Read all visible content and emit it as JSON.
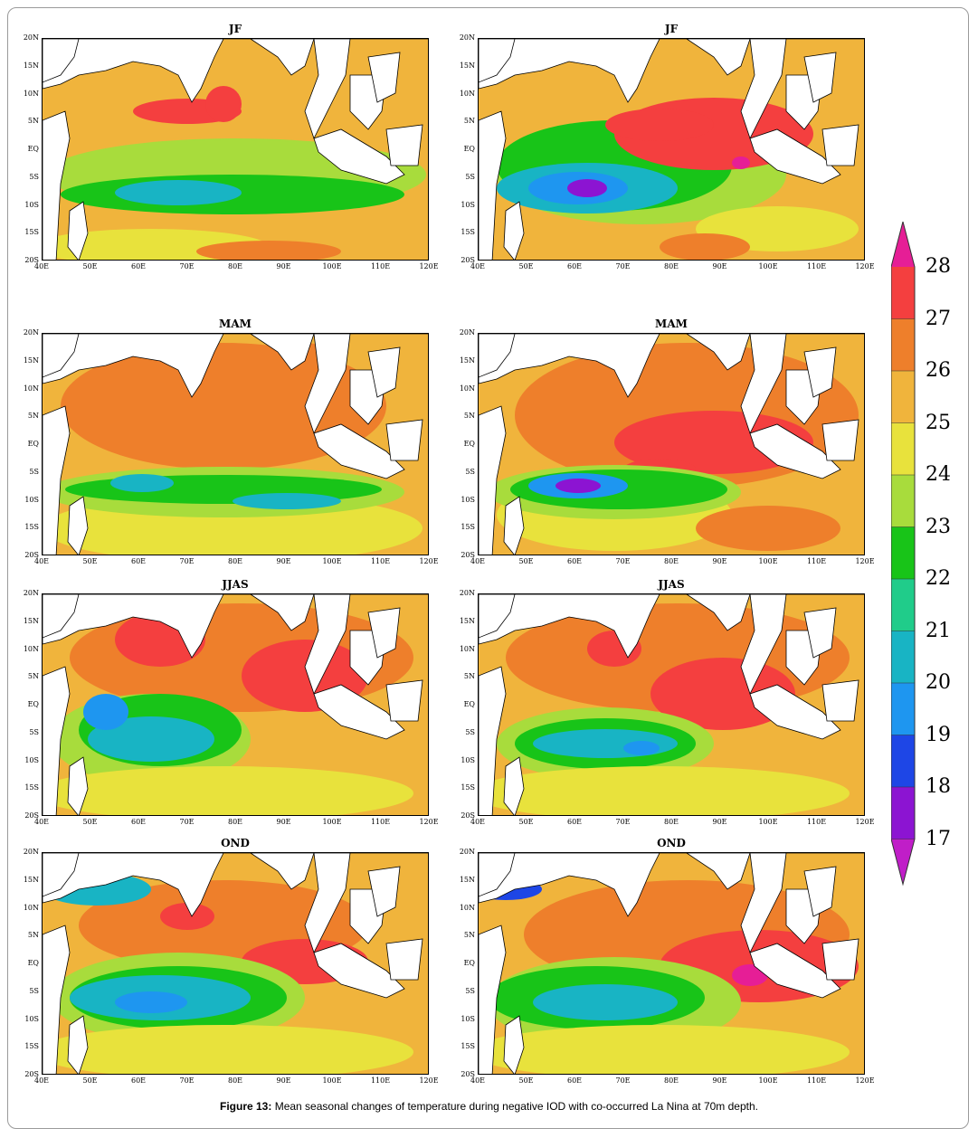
{
  "figure": {
    "caption_label": "Figure 13:",
    "caption_text": " Mean seasonal changes of temperature during negative IOD with co-occurred La Nina at 70m depth."
  },
  "axes": {
    "y_ticks": [
      "20N",
      "15N",
      "10N",
      "5N",
      "EQ",
      "5S",
      "10S",
      "15S",
      "20S"
    ],
    "x_ticks": [
      "40E",
      "50E",
      "60E",
      "70E",
      "80E",
      "90E",
      "100E",
      "110E",
      "120E"
    ]
  },
  "panels": [
    {
      "title": "JF",
      "column": "left"
    },
    {
      "title": "JF",
      "column": "right"
    },
    {
      "title": "MAM",
      "column": "left"
    },
    {
      "title": "MAM",
      "column": "right"
    },
    {
      "title": "JJAS",
      "column": "left"
    },
    {
      "title": "JJAS",
      "column": "right"
    },
    {
      "title": "OND",
      "column": "left"
    },
    {
      "title": "OND",
      "column": "right"
    }
  ],
  "colorbar": {
    "labels": [
      "28",
      "27",
      "26",
      "25",
      "24",
      "23",
      "22",
      "21",
      "20",
      "19",
      "18",
      "17"
    ],
    "colors": [
      "#e61e96",
      "#f43f3f",
      "#ee7f2b",
      "#f0b43c",
      "#e8e23c",
      "#a8dc3c",
      "#18c418",
      "#20cc8a",
      "#18b4c4",
      "#1e96f0",
      "#1e46e6",
      "#8c14d2",
      "#c01ec8"
    ]
  }
}
